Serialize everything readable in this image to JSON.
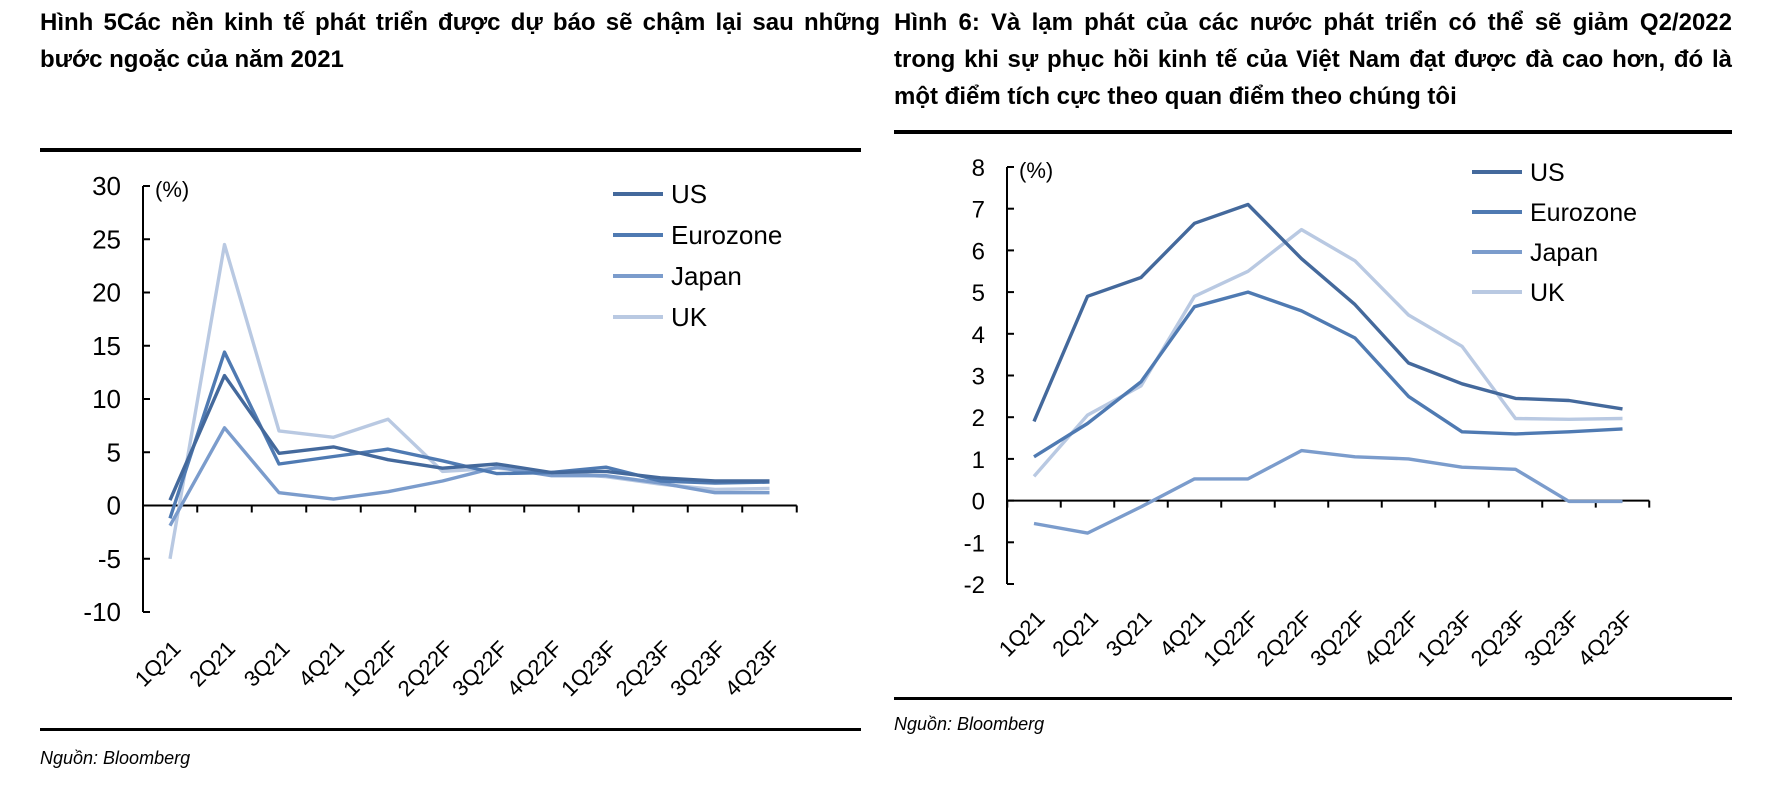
{
  "left": {
    "title_lines": [
      "Hình 5Các nền kinh tế phát triển được dự báo sẽ chậm lại sau những",
      "bước ngoặc của năm 2021"
    ],
    "source": "Nguồn: Bloomberg",
    "chart_data": {
      "type": "line",
      "unit_label": "(%)",
      "categories": [
        "1Q21",
        "2Q21",
        "3Q21",
        "4Q21",
        "1Q22F",
        "2Q22F",
        "3Q22F",
        "4Q22F",
        "1Q23F",
        "2Q23F",
        "3Q23F",
        "4Q23F"
      ],
      "ylim": [
        -10,
        30
      ],
      "yticks": [
        -10,
        -5,
        0,
        5,
        10,
        15,
        20,
        25,
        30
      ],
      "ytick_labels": [
        "-10",
        "-5",
        "0",
        "5",
        "10",
        "15",
        "20",
        "25",
        "30"
      ],
      "series": [
        {
          "name": "US",
          "color": "#44699c",
          "values": [
            0.5,
            12.2,
            4.9,
            5.5,
            4.3,
            3.5,
            3.9,
            3.1,
            3.2,
            2.6,
            2.3,
            2.3
          ]
        },
        {
          "name": "Eurozone",
          "color": "#4f7ab2",
          "values": [
            -1.2,
            14.4,
            3.9,
            4.6,
            5.3,
            4.2,
            3.0,
            3.1,
            3.6,
            2.3,
            2.1,
            2.2
          ]
        },
        {
          "name": "Japan",
          "color": "#7b9ccc",
          "values": [
            -1.9,
            7.3,
            1.2,
            0.6,
            1.3,
            2.3,
            3.6,
            2.8,
            2.8,
            2.1,
            1.2,
            1.2
          ]
        },
        {
          "name": "UK",
          "color": "#b9c9e2",
          "values": [
            -5.0,
            24.5,
            7.0,
            6.4,
            8.1,
            3.2,
            3.5,
            3.1,
            2.7,
            2.0,
            1.5,
            1.6
          ]
        }
      ]
    }
  },
  "right": {
    "title_lines": [
      "Hình 6: Và lạm phát của các nước phát triển có thể sẽ giảm Q2/2022",
      "trong khi sự phục hồi kinh tế của Việt Nam đạt được đà cao hơn, đó là",
      "một điểm tích cực theo quan điểm theo chúng tôi"
    ],
    "source": "Nguồn: Bloomberg",
    "chart_data": {
      "type": "line",
      "unit_label": "(%)",
      "categories": [
        "1Q21",
        "2Q21",
        "3Q21",
        "4Q21",
        "1Q22F",
        "2Q22F",
        "3Q22F",
        "4Q22F",
        "1Q23F",
        "2Q23F",
        "3Q23F",
        "4Q23F"
      ],
      "ylim": [
        -2,
        8
      ],
      "yticks": [
        -2,
        -1,
        0,
        1,
        2,
        3,
        4,
        5,
        6,
        7,
        8
      ],
      "ytick_labels": [
        "-2",
        "-1",
        "0",
        "1",
        "2",
        "3",
        "4",
        "5",
        "6",
        "7",
        "8"
      ],
      "series": [
        {
          "name": "US",
          "color": "#44699c",
          "values": [
            1.9,
            4.9,
            5.35,
            6.65,
            7.1,
            5.8,
            4.7,
            3.3,
            2.8,
            2.45,
            2.4,
            2.2
          ]
        },
        {
          "name": "Eurozone",
          "color": "#4f7ab2",
          "values": [
            1.05,
            1.85,
            2.85,
            4.65,
            5.0,
            4.55,
            3.9,
            2.5,
            1.65,
            1.6,
            1.65,
            1.72
          ]
        },
        {
          "name": "Japan",
          "color": "#7b9ccc",
          "values": [
            -0.55,
            -0.78,
            -0.15,
            0.52,
            0.52,
            1.2,
            1.05,
            1.0,
            0.8,
            0.75,
            -0.02,
            -0.02
          ]
        },
        {
          "name": "UK",
          "color": "#b9c9e2",
          "values": [
            0.58,
            2.05,
            2.75,
            4.9,
            5.5,
            6.5,
            5.75,
            4.45,
            3.7,
            1.97,
            1.95,
            1.97
          ]
        }
      ]
    }
  }
}
